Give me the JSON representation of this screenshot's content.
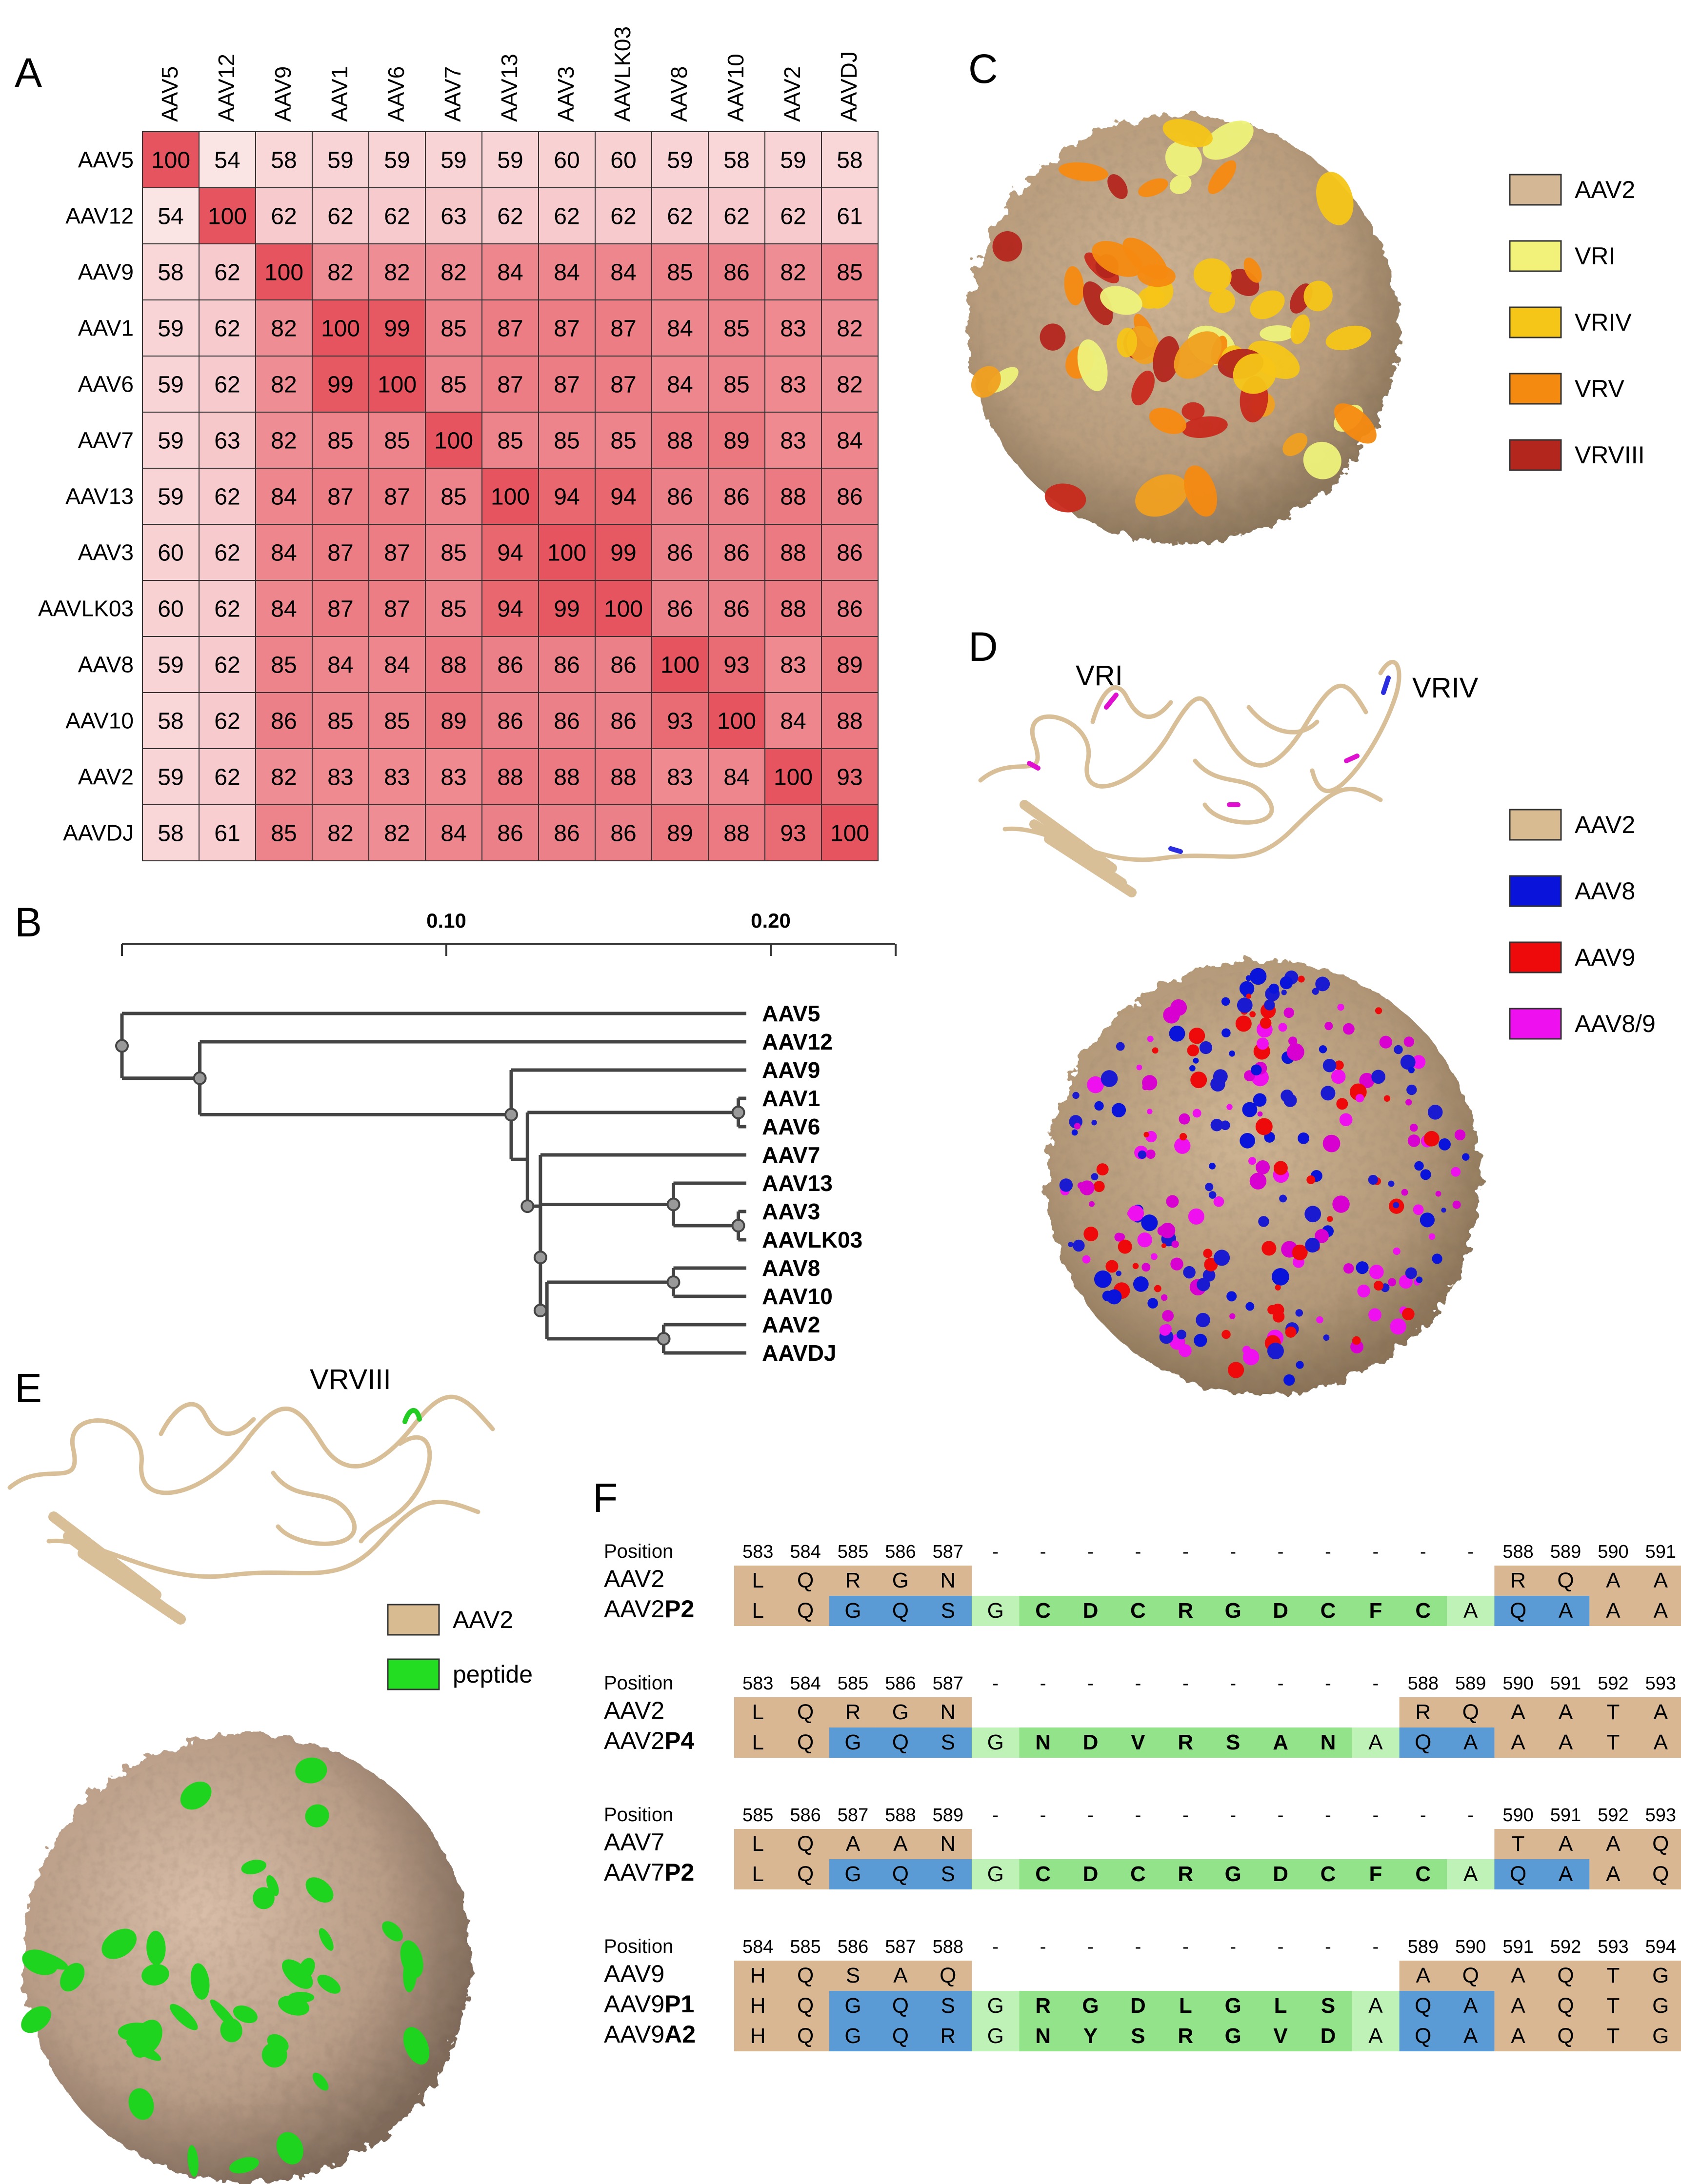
{
  "panels": {
    "A": "A",
    "B": "B",
    "C": "C",
    "D": "D",
    "E": "E",
    "F": "F"
  },
  "heatmap": {
    "labels": [
      "AAV5",
      "AAV12",
      "AAV9",
      "AAV1",
      "AAV6",
      "AAV7",
      "AAV13",
      "AAV3",
      "AAVLK03",
      "AAV8",
      "AAV10",
      "AAV2",
      "AAVDJ"
    ],
    "matrix": [
      [
        100,
        54,
        58,
        59,
        59,
        59,
        59,
        60,
        60,
        59,
        58,
        59,
        58
      ],
      [
        54,
        100,
        62,
        62,
        62,
        63,
        62,
        62,
        62,
        62,
        62,
        62,
        61
      ],
      [
        58,
        62,
        100,
        82,
        82,
        82,
        84,
        84,
        84,
        85,
        86,
        82,
        85
      ],
      [
        59,
        62,
        82,
        100,
        99,
        85,
        87,
        87,
        87,
        84,
        85,
        83,
        82
      ],
      [
        59,
        62,
        82,
        99,
        100,
        85,
        87,
        87,
        87,
        84,
        85,
        83,
        82
      ],
      [
        59,
        63,
        82,
        85,
        85,
        100,
        85,
        85,
        85,
        88,
        89,
        83,
        84
      ],
      [
        59,
        62,
        84,
        87,
        87,
        85,
        100,
        94,
        94,
        86,
        86,
        88,
        86
      ],
      [
        60,
        62,
        84,
        87,
        87,
        85,
        94,
        100,
        99,
        86,
        86,
        88,
        86
      ],
      [
        60,
        62,
        84,
        87,
        87,
        85,
        94,
        99,
        100,
        86,
        86,
        88,
        86
      ],
      [
        59,
        62,
        85,
        84,
        84,
        88,
        86,
        86,
        86,
        100,
        93,
        83,
        89
      ],
      [
        58,
        62,
        86,
        85,
        85,
        89,
        86,
        86,
        86,
        93,
        100,
        84,
        88
      ],
      [
        59,
        62,
        82,
        83,
        83,
        83,
        88,
        88,
        88,
        83,
        84,
        100,
        93
      ],
      [
        58,
        61,
        85,
        82,
        82,
        84,
        86,
        86,
        86,
        89,
        88,
        93,
        100
      ]
    ]
  },
  "tree": {
    "scale_ticks": [
      "0.10",
      "0.20"
    ],
    "leaves": [
      "AAV5",
      "AAV12",
      "AAV9",
      "AAV1",
      "AAV6",
      "AAV7",
      "AAV13",
      "AAV3",
      "AAVLK03",
      "AAV8",
      "AAV10",
      "AAV2",
      "AAVDJ"
    ]
  },
  "legendC": [
    {
      "label": "AAV2",
      "color": "#d4b896"
    },
    {
      "label": "VRI",
      "color": "#f2f27a"
    },
    {
      "label": "VRIV",
      "color": "#f5c518"
    },
    {
      "label": "VRV",
      "color": "#f58a10"
    },
    {
      "label": "VRVIII",
      "color": "#b3261e"
    }
  ],
  "legendD": [
    {
      "label": "AAV2",
      "color": "#d9bb92"
    },
    {
      "label": "AAV8",
      "color": "#0a13d9"
    },
    {
      "label": "AAV9",
      "color": "#ee0a0a"
    },
    {
      "label": "AAV8/9",
      "color": "#ee10ee"
    }
  ],
  "legendE": [
    {
      "label": "AAV2",
      "color": "#d9bb92"
    },
    {
      "label": "peptide",
      "color": "#22dd22"
    }
  ],
  "structure_labels": {
    "vri": "VRI",
    "vriv": "VRIV",
    "vrviii": "VRVIII"
  },
  "alignment": [
    {
      "positions": [
        "583",
        "584",
        "585",
        "586",
        "587",
        "-",
        "-",
        "-",
        "-",
        "-",
        "-",
        "-",
        "-",
        "-",
        "-",
        "-",
        "588",
        "589",
        "590",
        "591"
      ],
      "rows": [
        {
          "name": "AAV2",
          "suffix": "",
          "seq": [
            "L",
            "Q",
            "R",
            "G",
            "N",
            "",
            "",
            "",
            "",
            "",
            "",
            "",
            "",
            "",
            "",
            "",
            "R",
            "Q",
            "A",
            "A"
          ]
        },
        {
          "name": "AAV2",
          "suffix": "P2",
          "seq": [
            "L",
            "Q",
            "G",
            "Q",
            "S",
            "G",
            "C",
            "D",
            "C",
            "R",
            "G",
            "D",
            "C",
            "F",
            "C",
            "A",
            "Q",
            "A",
            "A",
            "A"
          ]
        }
      ]
    },
    {
      "positions": [
        "583",
        "584",
        "585",
        "586",
        "587",
        "-",
        "-",
        "-",
        "-",
        "-",
        "-",
        "-",
        "-",
        "-",
        "588",
        "589",
        "590",
        "591",
        "592",
        "593"
      ],
      "rows": [
        {
          "name": "AAV2",
          "suffix": "",
          "seq": [
            "L",
            "Q",
            "R",
            "G",
            "N",
            "",
            "",
            "",
            "",
            "",
            "",
            "",
            "",
            "",
            "R",
            "Q",
            "A",
            "A",
            "T",
            "A"
          ]
        },
        {
          "name": "AAV2",
          "suffix": "P4",
          "seq": [
            "L",
            "Q",
            "G",
            "Q",
            "S",
            "G",
            "N",
            "D",
            "V",
            "R",
            "S",
            "A",
            "N",
            "A",
            "Q",
            "A",
            "A",
            "A",
            "T",
            "A"
          ]
        }
      ]
    },
    {
      "positions": [
        "585",
        "586",
        "587",
        "588",
        "589",
        "-",
        "-",
        "-",
        "-",
        "-",
        "-",
        "-",
        "-",
        "-",
        "-",
        "-",
        "590",
        "591",
        "592",
        "593"
      ],
      "rows": [
        {
          "name": "AAV7",
          "suffix": "",
          "seq": [
            "L",
            "Q",
            "A",
            "A",
            "N",
            "",
            "",
            "",
            "",
            "",
            "",
            "",
            "",
            "",
            "",
            "",
            "T",
            "A",
            "A",
            "Q"
          ]
        },
        {
          "name": "AAV7",
          "suffix": "P2",
          "seq": [
            "L",
            "Q",
            "G",
            "Q",
            "S",
            "G",
            "C",
            "D",
            "C",
            "R",
            "G",
            "D",
            "C",
            "F",
            "C",
            "A",
            "Q",
            "A",
            "A",
            "Q"
          ]
        }
      ]
    },
    {
      "positions": [
        "584",
        "585",
        "586",
        "587",
        "588",
        "-",
        "-",
        "-",
        "-",
        "-",
        "-",
        "-",
        "-",
        "-",
        "589",
        "590",
        "591",
        "592",
        "593",
        "594"
      ],
      "rows": [
        {
          "name": "AAV9",
          "suffix": "",
          "seq": [
            "H",
            "Q",
            "S",
            "A",
            "Q",
            "",
            "",
            "",
            "",
            "",
            "",
            "",
            "",
            "",
            "A",
            "Q",
            "A",
            "Q",
            "T",
            "G"
          ]
        },
        {
          "name": "AAV9",
          "suffix": "P1",
          "seq": [
            "H",
            "Q",
            "G",
            "Q",
            "S",
            "G",
            "R",
            "G",
            "D",
            "L",
            "G",
            "L",
            "S",
            "A",
            "Q",
            "A",
            "A",
            "Q",
            "T",
            "G"
          ]
        },
        {
          "name": "AAV9",
          "suffix": "A2",
          "seq": [
            "H",
            "Q",
            "G",
            "Q",
            "R",
            "G",
            "N",
            "Y",
            "S",
            "R",
            "G",
            "V",
            "D",
            "A",
            "Q",
            "A",
            "A",
            "Q",
            "T",
            "G"
          ]
        }
      ]
    }
  ],
  "position_label": "Position"
}
